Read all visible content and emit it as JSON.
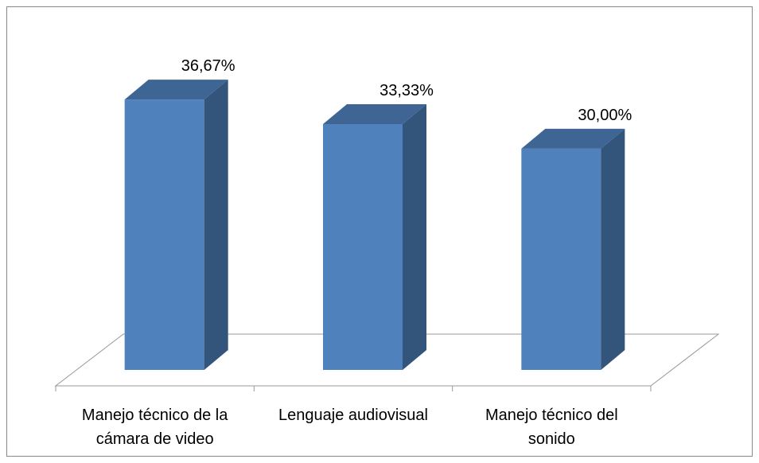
{
  "chart_data": {
    "type": "bar3d",
    "categories": [
      "Manejo técnico de la cámara de video",
      "Lenguaje audiovisual",
      "Manejo técnico del sonido"
    ],
    "values": [
      36.67,
      33.33,
      30.0
    ],
    "value_labels": [
      "36,67%",
      "33,33%",
      "30,00%"
    ],
    "color": "#4f81bd"
  }
}
